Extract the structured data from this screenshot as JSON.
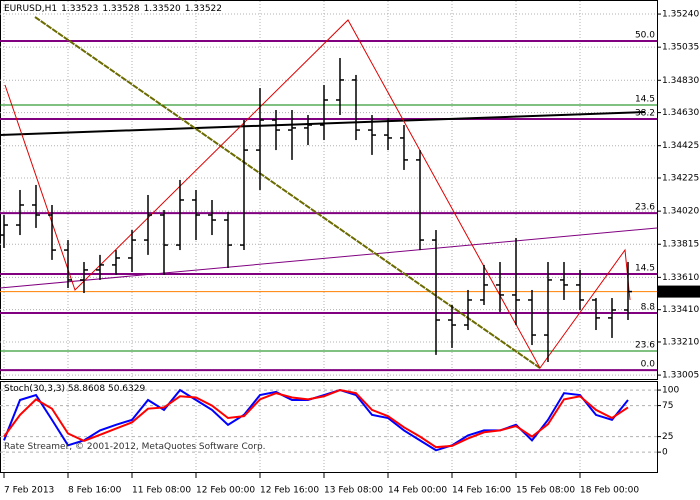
{
  "chart_data": {
    "type": "ohlc",
    "title": "EURUSD,H1",
    "ohlc_header": [
      "1.33523",
      "1.33528",
      "1.33520",
      "1.33522"
    ],
    "categories": [
      "7 Feb 2013",
      null,
      null,
      null,
      "8 Feb 16:00",
      null,
      null,
      null,
      "11 Feb 08:00",
      null,
      null,
      null,
      "12 Feb 00:00",
      null,
      null,
      null,
      "12 Feb 16:00",
      null,
      null,
      null,
      "13 Feb 08:00",
      null,
      null,
      null,
      "14 Feb 00:00",
      null,
      null,
      null,
      "14 Feb 16:00",
      null,
      null,
      null,
      "15 Feb 08:00",
      null,
      null,
      null,
      "18 Feb 00:00",
      null,
      null,
      null
    ],
    "open": [
      1.33872,
      1.33934,
      1.34058,
      1.33996,
      1.33779,
      1.33594,
      1.33656,
      1.33687,
      1.3373,
      1.33841,
      1.33996,
      1.3381,
      1.34089,
      1.33996,
      1.33965,
      1.3381,
      1.34398,
      1.34584,
      1.34522,
      1.34535,
      1.34553,
      1.34708,
      1.34832,
      1.34522,
      1.34491,
      1.34473,
      1.34337,
      1.33841,
      1.33346,
      1.33315,
      1.3347,
      1.33563,
      1.33501,
      1.3347,
      1.33253,
      1.33594,
      1.33563,
      1.3347,
      1.33359,
      1.33408
    ],
    "high": [
      1.33996,
      1.34151,
      1.34182,
      1.34058,
      1.33841,
      1.33705,
      1.33749,
      1.33779,
      1.33903,
      1.3412,
      1.34027,
      1.34213,
      1.34151,
      1.34089,
      1.34015,
      1.34584,
      1.34782,
      1.34646,
      1.34646,
      1.34615,
      1.34801,
      1.34968,
      1.34863,
      1.34615,
      1.34597,
      1.34553,
      1.34398,
      1.33903,
      1.33439,
      1.33532,
      1.33687,
      1.33705,
      1.33854,
      1.33532,
      1.33705,
      1.33705,
      1.33656,
      1.33482,
      1.33482,
      1.33705
    ],
    "low": [
      1.33792,
      1.33872,
      1.33916,
      1.33718,
      1.33544,
      1.33513,
      1.33594,
      1.33625,
      1.33643,
      1.33749,
      1.33625,
      1.33779,
      1.33841,
      1.33872,
      1.33668,
      1.33779,
      1.34151,
      1.34398,
      1.34337,
      1.34429,
      1.3446,
      1.34615,
      1.3446,
      1.34368,
      1.34398,
      1.34275,
      1.33779,
      1.3313,
      1.33173,
      1.33284,
      1.33439,
      1.33396,
      1.33315,
      1.33191,
      1.33086,
      1.3347,
      1.33408,
      1.33284,
      1.33235,
      1.33346
    ],
    "close": [
      1.33934,
      1.34058,
      1.33996,
      1.33779,
      1.33594,
      1.33656,
      1.33687,
      1.3373,
      1.33841,
      1.33996,
      1.3381,
      1.34089,
      1.33996,
      1.33965,
      1.3381,
      1.34398,
      1.34584,
      1.34522,
      1.34535,
      1.34553,
      1.34708,
      1.34832,
      1.34522,
      1.34491,
      1.34473,
      1.34337,
      1.33841,
      1.33346,
      1.33315,
      1.3347,
      1.33563,
      1.33501,
      1.3347,
      1.33253,
      1.33594,
      1.33563,
      1.3347,
      1.33359,
      1.33408,
      1.33522
    ],
    "color": "#000000",
    "ylim": [
      1.32987,
      1.35327
    ],
    "yticks": [
      {
        "value": 1.3524,
        "label": "1.35240"
      },
      {
        "value": 1.35035,
        "label": "1.35035"
      },
      {
        "value": 1.3483,
        "label": "1.34830"
      },
      {
        "value": 1.3463,
        "label": "1.34630"
      },
      {
        "value": 1.34425,
        "label": "1.34425"
      },
      {
        "value": 1.34225,
        "label": "1.34225"
      },
      {
        "value": 1.3402,
        "label": "1.34020"
      },
      {
        "value": 1.33815,
        "label": "1.33815"
      },
      {
        "value": 1.3361,
        "label": "1.33610"
      },
      {
        "value": 1.3341,
        "label": "1.33410"
      },
      {
        "value": 1.3321,
        "label": "1.33210"
      },
      {
        "value": 1.33005,
        "label": "1.33005"
      }
    ],
    "grid": true,
    "levels": [
      {
        "value": 1.35073,
        "label": "50.0",
        "color": "#800080"
      },
      {
        "value": 1.34677,
        "label": "14.5",
        "color": "#008000"
      },
      {
        "value": 1.3459,
        "label": "38.2",
        "color": "#800080"
      },
      {
        "value": 1.34008,
        "label": "23.6",
        "color": "#800080"
      },
      {
        "value": 1.33631,
        "label": "14.5",
        "color": "#800080"
      },
      {
        "value": 1.33389,
        "label": "8.8",
        "color": "#800080"
      },
      {
        "value": 1.33154,
        "label": "23.6",
        "color": "#008000"
      },
      {
        "value": 1.33036,
        "label": "0.0",
        "color": "#800080"
      }
    ],
    "bid": {
      "value": 1.33522,
      "label": "1.33522"
    },
    "bid_color": "#ff8000",
    "indicator": {
      "title": "Stoch(30,3,3) 58.8608 50.6329",
      "ylim": [
        -32,
        113
      ],
      "yticks": [
        0,
        25,
        75,
        100
      ],
      "series": [
        {
          "color": "#0000ff",
          "values": [
            19,
            84,
            92,
            52,
            11,
            19,
            35,
            44,
            52,
            84,
            68,
            100,
            84,
            68,
            44,
            60,
            92,
            97,
            84,
            84,
            92,
            100,
            92,
            60,
            55,
            35,
            19,
            3,
            11,
            27,
            35,
            35,
            44,
            19,
            52,
            95,
            92,
            60,
            52,
            84
          ]
        },
        {
          "color": "#ff0000",
          "values": [
            25,
            60,
            85,
            70,
            30,
            18,
            28,
            38,
            48,
            70,
            72,
            90,
            88,
            75,
            55,
            58,
            85,
            95,
            88,
            85,
            90,
            100,
            95,
            68,
            58,
            40,
            25,
            8,
            10,
            22,
            32,
            35,
            42,
            25,
            45,
            85,
            90,
            68,
            55,
            72
          ]
        }
      ]
    },
    "watermark": "Rate Streamer, © 2001-2012, MetaQuotes Software Corp."
  }
}
